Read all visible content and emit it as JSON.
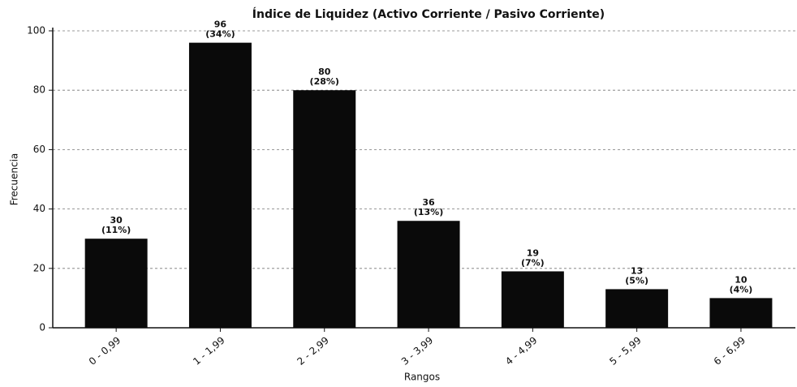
{
  "chart_data": {
    "type": "bar",
    "title": "Índice de Liquidez (Activo Corriente / Pasivo Corriente)",
    "x_label": "Rangos",
    "y_label": "Frecuencia",
    "categories": [
      "0 - 0,99",
      "1 - 1,99",
      "2 - 2,99",
      "3 - 3,99",
      "4 - 4,99",
      "5 - 5,99",
      "6 - 6,99"
    ],
    "values": [
      30,
      96,
      80,
      36,
      19,
      13,
      10
    ],
    "percent_labels": [
      "(11%)",
      "(34%)",
      "(28%)",
      "(13%)",
      "(7%)",
      "(5%)",
      "(4%)"
    ],
    "color": "#0a0a0a",
    "ylim": [
      0,
      100
    ],
    "yticks": [
      0,
      20,
      40,
      60,
      80,
      100
    ],
    "grid": true
  }
}
